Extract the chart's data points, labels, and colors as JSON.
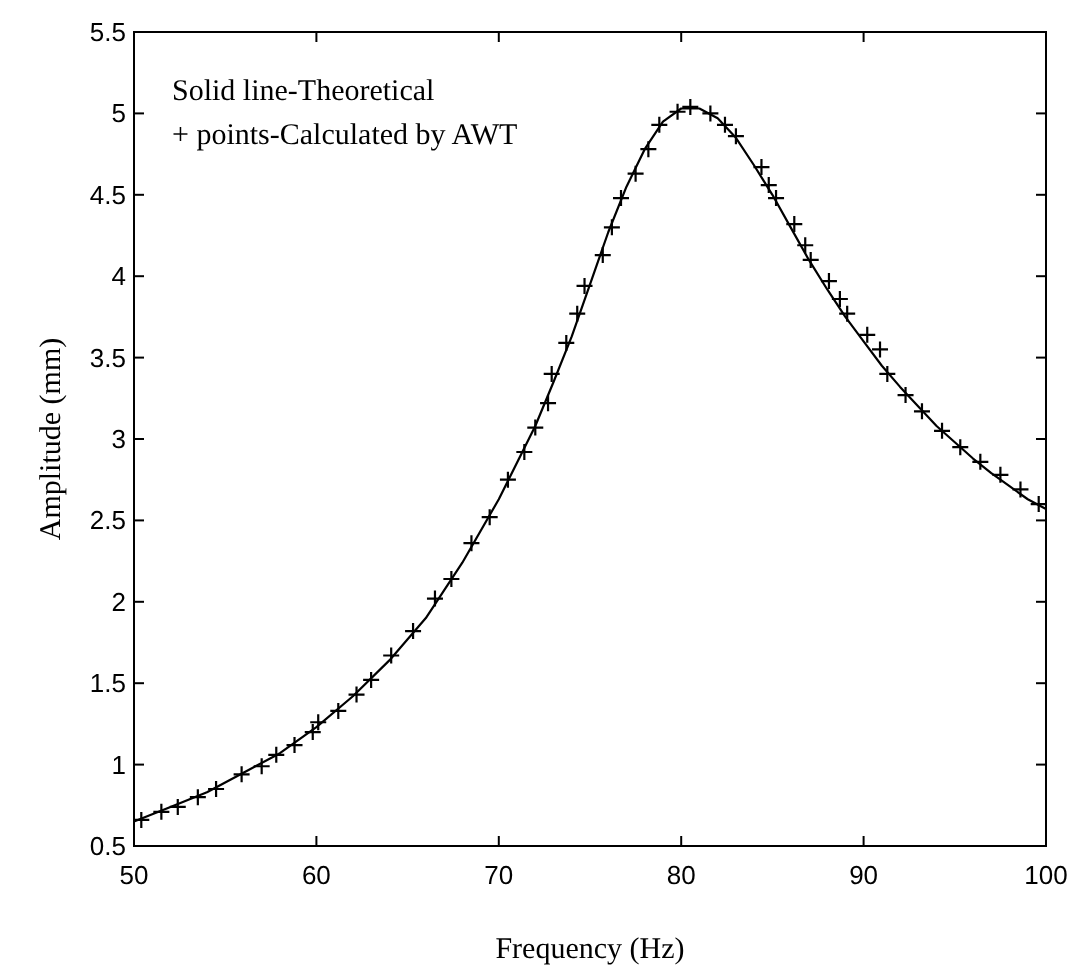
{
  "chart_data": {
    "type": "line",
    "xlabel": "Frequency (Hz)",
    "ylabel": "Amplitude (mm)",
    "annotations": [
      "Solid line-Theoretical",
      "+ points-Calculated by AWT"
    ],
    "xlim": [
      50,
      100
    ],
    "ylim": [
      0.5,
      5.5
    ],
    "xticks": [
      50,
      60,
      70,
      80,
      90,
      100
    ],
    "yticks": [
      0.5,
      1,
      1.5,
      2,
      2.5,
      3,
      3.5,
      4,
      4.5,
      5,
      5.5
    ],
    "grid": false,
    "series": [
      {
        "color": "#000000",
        "line_style": "solid",
        "marker": "none",
        "x": [
          50,
          52,
          54,
          56,
          58,
          60,
          62,
          64,
          66,
          68,
          70,
          72,
          73,
          74,
          75,
          76,
          77,
          78,
          79,
          80,
          81,
          82,
          83,
          84,
          85,
          86,
          87,
          88,
          89,
          90,
          91,
          92,
          93,
          94,
          95,
          96,
          97,
          98,
          99,
          100
        ],
        "values": [
          0.65,
          0.74,
          0.83,
          0.95,
          1.07,
          1.23,
          1.42,
          1.64,
          1.9,
          2.24,
          2.63,
          3.08,
          3.35,
          3.63,
          3.95,
          4.27,
          4.55,
          4.78,
          4.95,
          5.03,
          5.03,
          4.97,
          4.85,
          4.68,
          4.5,
          4.3,
          4.1,
          3.92,
          3.75,
          3.6,
          3.45,
          3.32,
          3.2,
          3.08,
          2.98,
          2.88,
          2.79,
          2.71,
          2.63,
          2.57
        ]
      },
      {
        "type": "scatter",
        "color": "#000000",
        "marker": "cross",
        "x": [
          50.4,
          51.5,
          52.4,
          53.5,
          54.5,
          55.9,
          57,
          57.8,
          58.8,
          59.8,
          60.1,
          61.2,
          62.2,
          63,
          64.1,
          65.3,
          66.5,
          67.4,
          68.5,
          69.5,
          70.5,
          71.4,
          72,
          72.7,
          72.9,
          73.7,
          74.3,
          74.7,
          75.7,
          76.2,
          76.7,
          77.5,
          78.2,
          78.8,
          79.8,
          80.5,
          81.6,
          82.4,
          83,
          84.4,
          84.8,
          85.2,
          86.2,
          86.8,
          87.1,
          88.1,
          88.7,
          89.1,
          90.2,
          90.9,
          91.3,
          92.3,
          93.2,
          94.3,
          95.3,
          96.4,
          97.5,
          98.6,
          99.6
        ],
        "values": [
          0.66,
          0.71,
          0.74,
          0.8,
          0.85,
          0.94,
          0.99,
          1.06,
          1.12,
          1.2,
          1.26,
          1.33,
          1.43,
          1.52,
          1.67,
          1.82,
          2.02,
          2.14,
          2.36,
          2.52,
          2.75,
          2.92,
          3.07,
          3.22,
          3.4,
          3.59,
          3.77,
          3.94,
          4.13,
          4.3,
          4.48,
          4.63,
          4.78,
          4.93,
          5.01,
          5.04,
          5,
          4.93,
          4.86,
          4.67,
          4.56,
          4.48,
          4.32,
          4.19,
          4.1,
          3.97,
          3.86,
          3.77,
          3.64,
          3.55,
          3.4,
          3.27,
          3.17,
          3.05,
          2.95,
          2.86,
          2.78,
          2.69,
          2.6
        ]
      }
    ]
  }
}
